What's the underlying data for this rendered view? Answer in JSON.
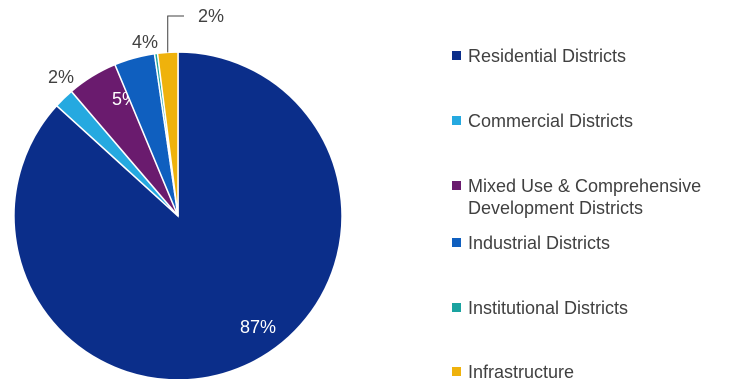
{
  "chart_data": {
    "type": "pie",
    "title": "",
    "slices": [
      {
        "label": "Residential Districts",
        "value": 87,
        "display": "87%",
        "color": "#0b2e8a"
      },
      {
        "label": "Commercial Districts",
        "value": 2,
        "display": "2%",
        "color": "#25a9e0"
      },
      {
        "label": "Mixed Use & Comprehensive Development Districts",
        "value": 5,
        "display": "5%",
        "color": "#6a1b6e"
      },
      {
        "label": "Industrial Districts",
        "value": 4,
        "display": "4%",
        "color": "#0f5fbf"
      },
      {
        "label": "Institutional Districts",
        "value": 0.3,
        "display": "",
        "color": "#1aa3a0"
      },
      {
        "label": "Infrastructure",
        "value": 2,
        "display": "2%",
        "color": "#efb20c"
      }
    ],
    "legend_position": "right"
  }
}
